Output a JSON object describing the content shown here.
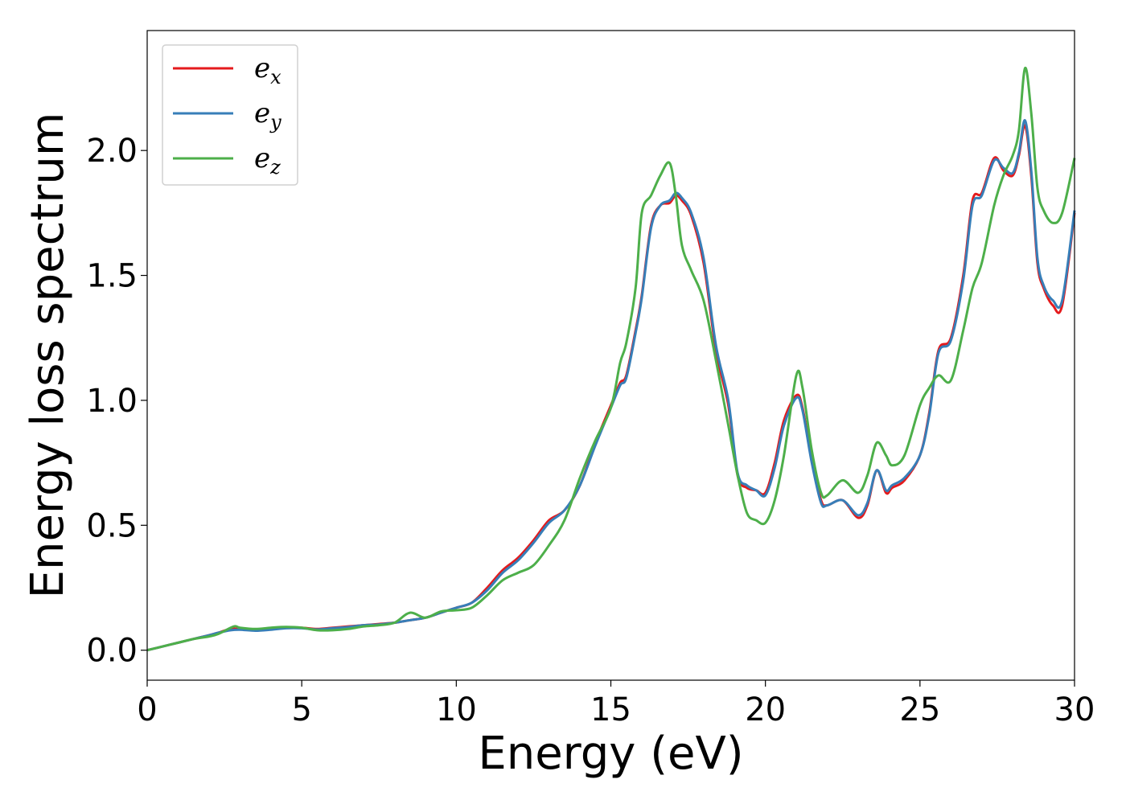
{
  "chart_data": {
    "type": "line",
    "title": "",
    "xlabel": "Energy (eV)",
    "ylabel": "Energy loss spectrum",
    "xlim": [
      0,
      30
    ],
    "ylim": [
      -0.12,
      2.48
    ],
    "xticks": [
      0,
      5,
      10,
      15,
      20,
      25,
      30
    ],
    "xtick_labels": [
      "0",
      "5",
      "10",
      "15",
      "20",
      "25",
      "30"
    ],
    "yticks": [
      0.0,
      0.5,
      1.0,
      1.5,
      2.0
    ],
    "ytick_labels": [
      "0.0",
      "0.5",
      "1.0",
      "1.5",
      "2.0"
    ],
    "grid": false,
    "legend_position": "top-left",
    "series": [
      {
        "name": "e",
        "subscript": "x",
        "color": "#e41a1c",
        "x": [
          0,
          0.5,
          1,
          1.5,
          2,
          2.3,
          2.7,
          3,
          3.5,
          4,
          4.5,
          5,
          5.5,
          6,
          6.5,
          7,
          7.5,
          8,
          8.5,
          9,
          9.5,
          10,
          10.5,
          11,
          11.5,
          12,
          12.5,
          13,
          13.5,
          14,
          14.5,
          15,
          15.3,
          15.5,
          15.8,
          16,
          16.3,
          16.6,
          16.9,
          17.1,
          17.3,
          17.6,
          18,
          18.4,
          18.8,
          19.1,
          19.4,
          19.7,
          20,
          20.3,
          20.6,
          21,
          21.2,
          21.5,
          21.8,
          22,
          22.5,
          23,
          23.3,
          23.6,
          23.9,
          24.1,
          24.5,
          25,
          25.3,
          25.6,
          26,
          26.4,
          26.7,
          27,
          27.4,
          27.7,
          28,
          28.2,
          28.4,
          28.6,
          28.8,
          29,
          29.3,
          29.6,
          30
        ],
        "y": [
          0.0,
          0.015,
          0.03,
          0.045,
          0.06,
          0.07,
          0.085,
          0.085,
          0.08,
          0.085,
          0.09,
          0.09,
          0.085,
          0.09,
          0.095,
          0.1,
          0.105,
          0.11,
          0.12,
          0.13,
          0.15,
          0.17,
          0.19,
          0.25,
          0.32,
          0.37,
          0.44,
          0.52,
          0.56,
          0.66,
          0.83,
          0.98,
          1.07,
          1.1,
          1.28,
          1.42,
          1.7,
          1.78,
          1.79,
          1.82,
          1.8,
          1.74,
          1.55,
          1.2,
          0.98,
          0.7,
          0.65,
          0.64,
          0.63,
          0.75,
          0.92,
          1.02,
          0.97,
          0.76,
          0.6,
          0.58,
          0.6,
          0.53,
          0.58,
          0.72,
          0.63,
          0.65,
          0.68,
          0.78,
          0.95,
          1.2,
          1.25,
          1.5,
          1.8,
          1.83,
          1.97,
          1.92,
          1.9,
          1.98,
          2.1,
          1.9,
          1.55,
          1.45,
          1.38,
          1.38,
          1.75
        ]
      },
      {
        "name": "e",
        "subscript": "y",
        "color": "#377eb8",
        "x": [
          0,
          0.5,
          1,
          1.5,
          2,
          2.3,
          2.7,
          3,
          3.5,
          4,
          4.5,
          5,
          5.5,
          6,
          6.5,
          7,
          7.5,
          8,
          8.5,
          9,
          9.5,
          10,
          10.5,
          11,
          11.5,
          12,
          12.5,
          13,
          13.5,
          14,
          14.5,
          15,
          15.3,
          15.5,
          15.8,
          16,
          16.3,
          16.6,
          16.9,
          17.1,
          17.3,
          17.6,
          18,
          18.4,
          18.8,
          19.1,
          19.4,
          19.7,
          20,
          20.3,
          20.6,
          21,
          21.2,
          21.5,
          21.8,
          22,
          22.5,
          23,
          23.3,
          23.6,
          23.9,
          24.1,
          24.5,
          25,
          25.3,
          25.6,
          26,
          26.4,
          26.7,
          27,
          27.4,
          27.7,
          28,
          28.2,
          28.4,
          28.6,
          28.8,
          29,
          29.3,
          29.6,
          30
        ],
        "y": [
          0.0,
          0.015,
          0.03,
          0.045,
          0.06,
          0.07,
          0.08,
          0.082,
          0.078,
          0.082,
          0.088,
          0.088,
          0.083,
          0.088,
          0.093,
          0.1,
          0.103,
          0.11,
          0.12,
          0.13,
          0.15,
          0.17,
          0.19,
          0.24,
          0.31,
          0.36,
          0.43,
          0.51,
          0.56,
          0.66,
          0.82,
          0.97,
          1.06,
          1.09,
          1.27,
          1.41,
          1.69,
          1.78,
          1.8,
          1.83,
          1.81,
          1.75,
          1.57,
          1.22,
          1.0,
          0.71,
          0.66,
          0.64,
          0.62,
          0.73,
          0.9,
          1.01,
          0.96,
          0.75,
          0.59,
          0.58,
          0.6,
          0.54,
          0.59,
          0.72,
          0.64,
          0.66,
          0.69,
          0.78,
          0.94,
          1.19,
          1.24,
          1.48,
          1.78,
          1.82,
          1.96,
          1.93,
          1.91,
          1.99,
          2.12,
          1.92,
          1.57,
          1.46,
          1.4,
          1.4,
          1.76
        ]
      },
      {
        "name": "e",
        "subscript": "z",
        "color": "#4daf4a",
        "x": [
          0,
          0.5,
          1,
          1.5,
          2,
          2.3,
          2.8,
          3,
          3.5,
          4,
          4.5,
          5,
          5.5,
          6,
          6.5,
          7,
          7.5,
          8,
          8.5,
          9,
          9.5,
          10,
          10.5,
          11,
          11.5,
          12,
          12.5,
          13,
          13.5,
          14,
          14.5,
          15,
          15.3,
          15.5,
          15.8,
          16,
          16.3,
          16.6,
          16.9,
          17.1,
          17.3,
          17.6,
          18,
          18.4,
          18.8,
          19.1,
          19.4,
          19.7,
          20,
          20.3,
          20.6,
          21,
          21.2,
          21.5,
          21.8,
          22,
          22.5,
          23,
          23.3,
          23.6,
          23.9,
          24.1,
          24.5,
          25,
          25.3,
          25.6,
          26,
          26.4,
          26.7,
          27,
          27.4,
          27.7,
          28,
          28.2,
          28.4,
          28.6,
          28.8,
          29,
          29.3,
          29.6,
          30
        ],
        "y": [
          0.0,
          0.015,
          0.03,
          0.045,
          0.055,
          0.065,
          0.095,
          0.09,
          0.085,
          0.09,
          0.093,
          0.09,
          0.08,
          0.08,
          0.085,
          0.095,
          0.1,
          0.11,
          0.15,
          0.13,
          0.155,
          0.16,
          0.17,
          0.22,
          0.28,
          0.31,
          0.34,
          0.42,
          0.52,
          0.69,
          0.84,
          0.97,
          1.15,
          1.23,
          1.45,
          1.75,
          1.82,
          1.9,
          1.95,
          1.82,
          1.62,
          1.52,
          1.4,
          1.16,
          0.9,
          0.7,
          0.55,
          0.52,
          0.51,
          0.6,
          0.78,
          1.1,
          1.05,
          0.8,
          0.63,
          0.62,
          0.68,
          0.63,
          0.7,
          0.83,
          0.78,
          0.74,
          0.78,
          0.98,
          1.05,
          1.1,
          1.08,
          1.28,
          1.45,
          1.55,
          1.78,
          1.9,
          1.98,
          2.08,
          2.33,
          2.15,
          1.85,
          1.76,
          1.71,
          1.75,
          1.97
        ]
      }
    ]
  }
}
